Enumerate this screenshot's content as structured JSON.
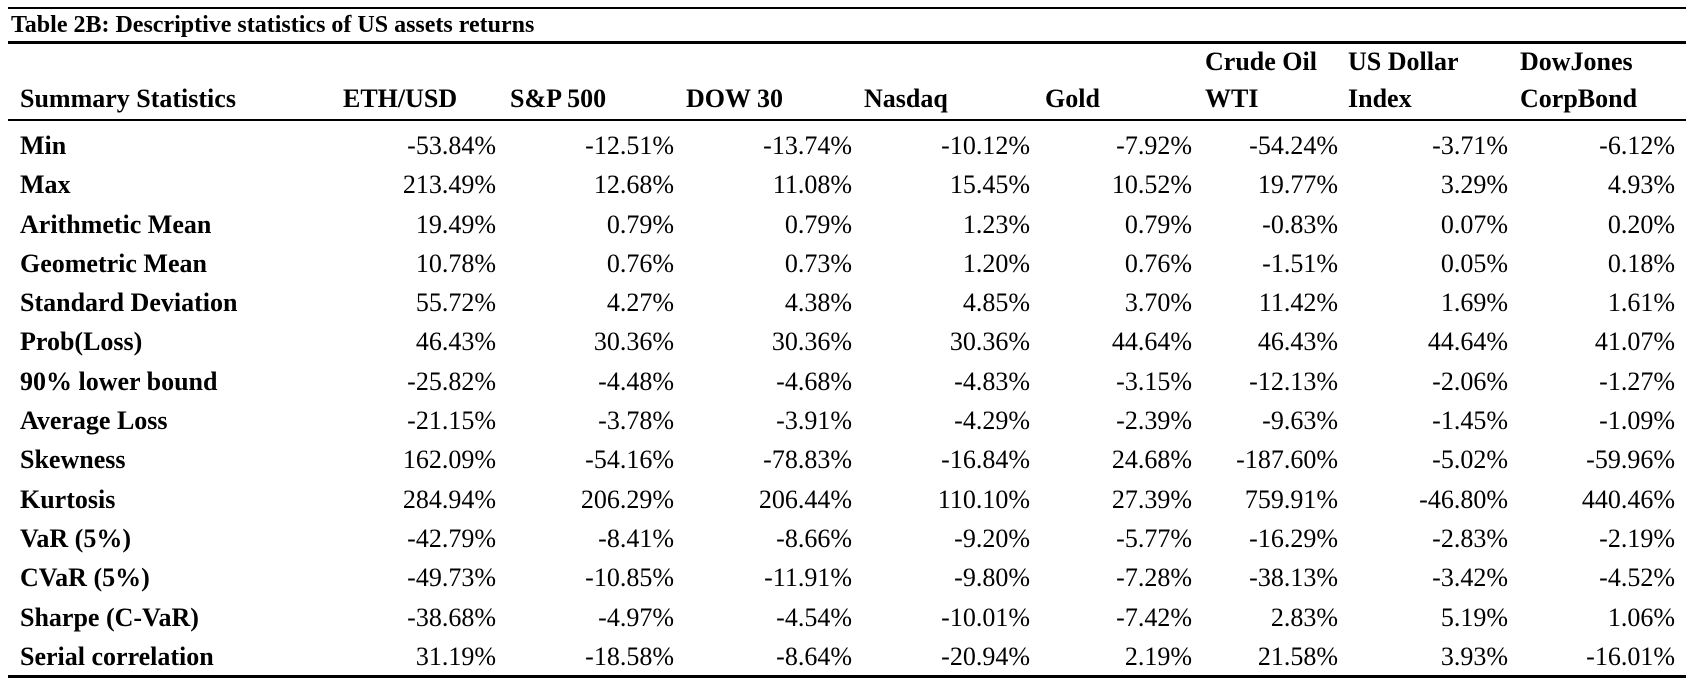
{
  "title": "Table 2B: Descriptive statistics of US assets returns",
  "header": {
    "stat_col": "Summary Statistics",
    "columns": [
      [
        "ETH/USD"
      ],
      [
        "S&P 500"
      ],
      [
        "DOW 30"
      ],
      [
        "Nasdaq"
      ],
      [
        "Gold"
      ],
      [
        "Crude Oil",
        "WTI"
      ],
      [
        "US Dollar",
        "Index"
      ],
      [
        "DowJones",
        "CorpBond"
      ]
    ]
  },
  "rows": [
    {
      "label": "Min",
      "values": [
        "-53.84%",
        "-12.51%",
        "-13.74%",
        "-10.12%",
        "-7.92%",
        "-54.24%",
        "-3.71%",
        "-6.12%"
      ]
    },
    {
      "label": "Max",
      "values": [
        "213.49%",
        "12.68%",
        "11.08%",
        "15.45%",
        "10.52%",
        "19.77%",
        "3.29%",
        "4.93%"
      ]
    },
    {
      "label": "Arithmetic Mean",
      "values": [
        "19.49%",
        "0.79%",
        "0.79%",
        "1.23%",
        "0.79%",
        "-0.83%",
        "0.07%",
        "0.20%"
      ]
    },
    {
      "label": "Geometric Mean",
      "values": [
        "10.78%",
        "0.76%",
        "0.73%",
        "1.20%",
        "0.76%",
        "-1.51%",
        "0.05%",
        "0.18%"
      ]
    },
    {
      "label": "Standard Deviation",
      "values": [
        "55.72%",
        "4.27%",
        "4.38%",
        "4.85%",
        "3.70%",
        "11.42%",
        "1.69%",
        "1.61%"
      ]
    },
    {
      "label": "Prob(Loss)",
      "values": [
        "46.43%",
        "30.36%",
        "30.36%",
        "30.36%",
        "44.64%",
        "46.43%",
        "44.64%",
        "41.07%"
      ]
    },
    {
      "label": "90% lower bound",
      "values": [
        "-25.82%",
        "-4.48%",
        "-4.68%",
        "-4.83%",
        "-3.15%",
        "-12.13%",
        "-2.06%",
        "-1.27%"
      ]
    },
    {
      "label": "Average Loss",
      "values": [
        "-21.15%",
        "-3.78%",
        "-3.91%",
        "-4.29%",
        "-2.39%",
        "-9.63%",
        "-1.45%",
        "-1.09%"
      ]
    },
    {
      "label": "Skewness",
      "values": [
        "162.09%",
        "-54.16%",
        "-78.83%",
        "-16.84%",
        "24.68%",
        "-187.60%",
        "-5.02%",
        "-59.96%"
      ]
    },
    {
      "label": "Kurtosis",
      "values": [
        "284.94%",
        "206.29%",
        "206.44%",
        "110.10%",
        "27.39%",
        "759.91%",
        "-46.80%",
        "440.46%"
      ]
    },
    {
      "label": "VaR (5%)",
      "values": [
        "-42.79%",
        "-8.41%",
        "-8.66%",
        "-9.20%",
        "-5.77%",
        "-16.29%",
        "-2.83%",
        "-2.19%"
      ]
    },
    {
      "label": "CVaR (5%)",
      "values": [
        "-49.73%",
        "-10.85%",
        "-11.91%",
        "-9.80%",
        "-7.28%",
        "-38.13%",
        "-3.42%",
        "-4.52%"
      ]
    },
    {
      "label": "Sharpe (C-VaR)",
      "values": [
        "-38.68%",
        "-4.97%",
        "-4.54%",
        "-10.01%",
        "-7.42%",
        "2.83%",
        "5.19%",
        "1.06%"
      ]
    },
    {
      "label": "Serial correlation",
      "values": [
        "31.19%",
        "-18.58%",
        "-8.64%",
        "-20.94%",
        "2.19%",
        "21.58%",
        "3.93%",
        "-16.01%"
      ]
    }
  ]
}
